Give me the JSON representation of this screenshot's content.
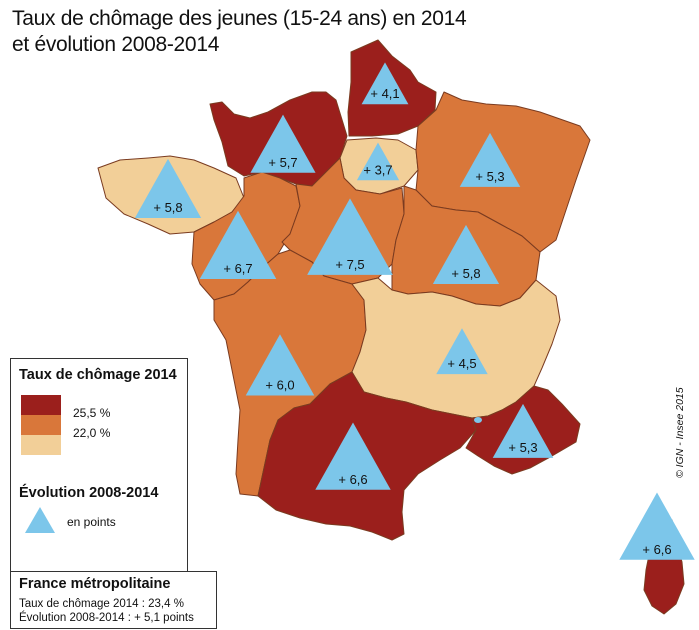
{
  "title": {
    "line1": "Taux de chômage des jeunes (15-24 ans) en 2014",
    "line2": "et évolution 2008-2014"
  },
  "colors": {
    "high": "#9b1f1c",
    "mid": "#d9773a",
    "low": "#f2cf98",
    "triangle": "#7cc6ea",
    "border": "#7a3b20"
  },
  "regions": [
    {
      "label": "+ 4,1",
      "level": "high"
    },
    {
      "label": "+ 5,7",
      "level": "high"
    },
    {
      "label": "+ 3,7",
      "level": "low"
    },
    {
      "label": "+ 5,3",
      "level": "mid"
    },
    {
      "label": "+ 5,8",
      "level": "low"
    },
    {
      "label": "+ 6,7",
      "level": "mid"
    },
    {
      "label": "+ 7,5",
      "level": "mid"
    },
    {
      "label": "+ 5,8",
      "level": "mid"
    },
    {
      "label": "+ 6,0",
      "level": "mid"
    },
    {
      "label": "+ 4,5",
      "level": "low"
    },
    {
      "label": "+ 5,3",
      "level": "high"
    },
    {
      "label": "+ 6,6",
      "level": "high"
    },
    {
      "label": "+ 6,6",
      "level": "high"
    }
  ],
  "legend": {
    "rate_title": "Taux de chômage 2014",
    "thresholds": [
      "25,5 %",
      "22,0 %"
    ],
    "evolution_title": "Évolution 2008-2014",
    "evolution_unit": "en points"
  },
  "summary": {
    "title": "France métropolitaine",
    "rate": "Taux de chômage 2014 : 23,4 %",
    "evolution": "Évolution 2008-2014 : + 5,1 points"
  },
  "copyright": "© IGN - Insee 2015"
}
